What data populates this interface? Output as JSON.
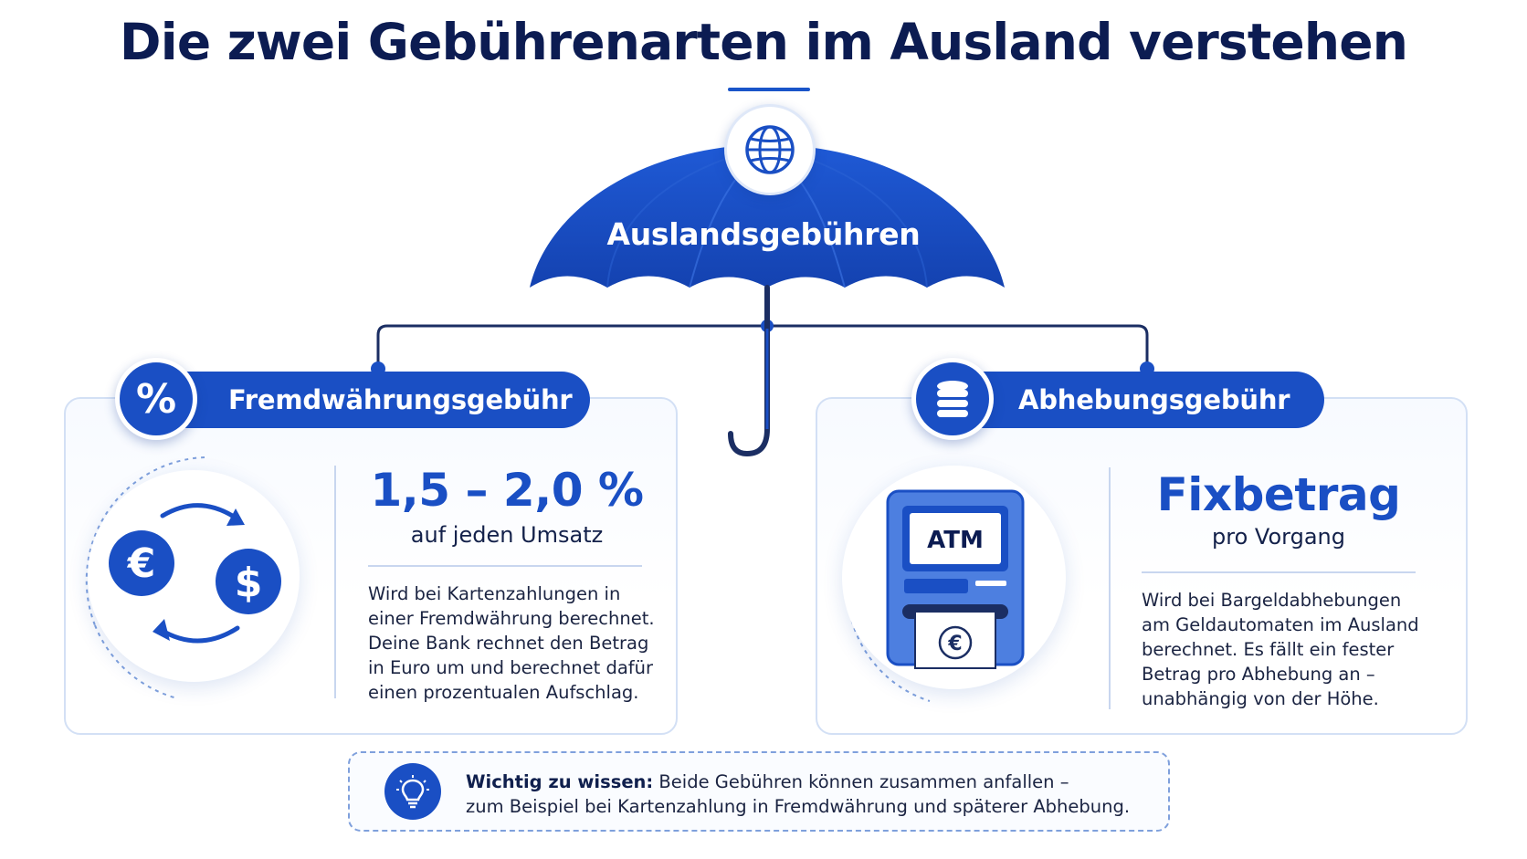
{
  "title": "Die zwei Gebührenarten im Ausland verstehen",
  "umbrella": {
    "label": "Auslandsgebühren",
    "icon": "globe-icon"
  },
  "colors": {
    "primary": "#1a4fc4",
    "dark_navy": "#0c1c52",
    "border": "#d3e0f5"
  },
  "left_card": {
    "heading": "Fremdwährungsgebühr",
    "badge_icon": "percent-icon",
    "badge_symbol": "%",
    "illustration": "currency-exchange-icon",
    "value": "1,5 – 2,0 %",
    "value_caption": "auf jeden Umsatz",
    "description": "Wird bei Kartenzahlungen in\neiner Fremdwährung berechnet.\nDeine Bank rechnet den Betrag\nin Euro um und berechnet dafür\neinen prozentualen Aufschlag."
  },
  "right_card": {
    "heading": "Abhebungsgebühr",
    "badge_icon": "coin-stack-icon",
    "illustration": "atm-icon",
    "atm_screen_text": "ATM",
    "value": "Fixbetrag",
    "value_caption": "pro Vorgang",
    "description": "Wird bei Bargeldabhebungen\nam Geldautomaten im Ausland\nberechnet. Es fällt ein fester\nBetrag pro Abhebung an –\nunabhängig von der Höhe."
  },
  "info": {
    "icon": "lightbulb-icon",
    "label": "Wichtig zu wissen:",
    "text_line1": " Beide Gebühren können zusammen anfallen –",
    "text_line2": "zum Beispiel bei Kartenzahlung in Fremdwährung und späterer Abhebung."
  }
}
